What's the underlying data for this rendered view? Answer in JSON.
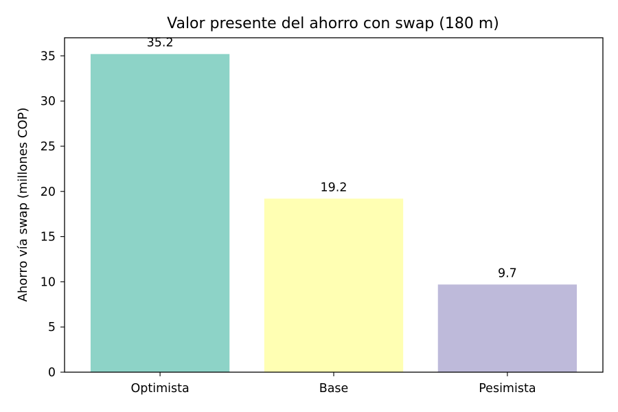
{
  "chart_data": {
    "type": "bar",
    "title": "Valor presente del ahorro con swap (180 m)",
    "xlabel": "",
    "ylabel": "Ahorro vía swap (millones COP)",
    "categories": [
      "Optimista",
      "Base",
      "Pesimista"
    ],
    "values": [
      35.2,
      19.2,
      9.7
    ],
    "value_labels": [
      "35.2",
      "19.2",
      "9.7"
    ],
    "colors": [
      "#8dd3c7",
      "#ffffb3",
      "#bebada"
    ],
    "ylim": [
      0,
      37
    ],
    "yticks": [
      0,
      5,
      10,
      15,
      20,
      25,
      30,
      35
    ],
    "grid": false,
    "legend": "none"
  }
}
